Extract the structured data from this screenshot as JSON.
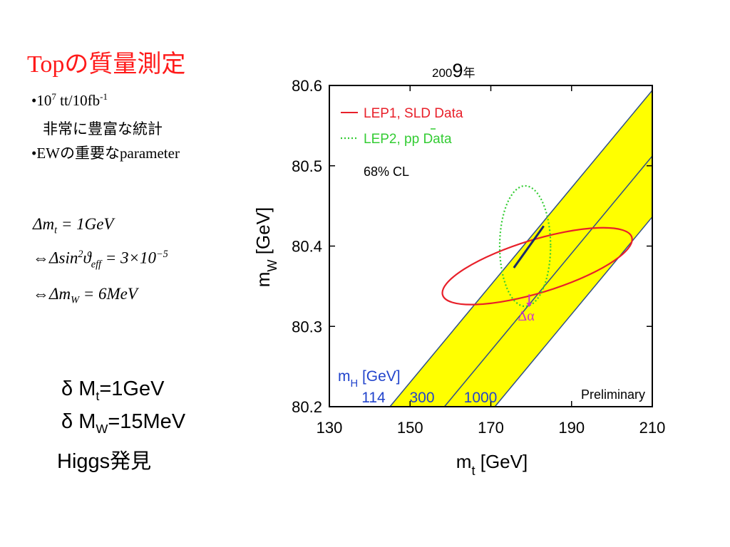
{
  "slide": {
    "title": "Topの質量測定",
    "bullets": [
      {
        "text": "•10",
        "sup": "7",
        "rest": " tt/10fb",
        "sup2": "-1"
      },
      {
        "text": "非常に豊富な統計"
      },
      {
        "text": "•EWの重要なparameter"
      }
    ],
    "equations": [
      {
        "lhs": "Δm",
        "sub": "t",
        "rhs": " = 1GeV"
      },
      {
        "prefix": "⇔Δsin",
        "sup": "2",
        "mid": "ϑ",
        "sub": "eff",
        "rhs": " = 3×10",
        "sup2": "−5"
      },
      {
        "prefix": "⇔Δm",
        "sub": "W",
        "rhs": " = 6MeV"
      }
    ],
    "summary": [
      {
        "pre": "δ M",
        "sub": "t",
        "post": "=1GeV"
      },
      {
        "pre": "δ M",
        "sub": "W",
        "post": "=15MeV"
      },
      {
        "pre": "Higgs発見",
        "sub": "",
        "post": ""
      }
    ]
  },
  "chart_data": {
    "type": "scatter",
    "year_label": {
      "prefix": "200",
      "digit": "9",
      "suffix": "年"
    },
    "xlabel": "m",
    "xlabel_sub": "t",
    "xlabel_unit": "[GeV]",
    "ylabel": "m",
    "ylabel_sub": "W",
    "ylabel_unit": "[GeV]",
    "xlim": [
      130,
      210
    ],
    "ylim": [
      80.2,
      80.6
    ],
    "xticks": [
      130,
      150,
      170,
      190,
      210
    ],
    "yticks": [
      80.2,
      80.3,
      80.4,
      80.5,
      80.6
    ],
    "ytick_labels": [
      "80.2",
      "80.3",
      "80.4",
      "80.5",
      "80.6"
    ],
    "legend": [
      {
        "label": "LEP1, SLD Data",
        "color": "#e8202a",
        "style": "solid"
      },
      {
        "label": "LEP2, pp Data",
        "color": "#33cc33",
        "style": "dotted"
      }
    ],
    "cl_label": "68% CL",
    "higgs_label": "m",
    "higgs_label_sub": "H",
    "higgs_label_unit": "[GeV]",
    "higgs_masses": [
      "114",
      "300",
      "1000"
    ],
    "band_color": "#ffff00",
    "annotation_alpha": "Δα",
    "annotation_color": "#cc33cc",
    "preliminary": "Preliminary",
    "band_lines": [
      {
        "mh": "114",
        "x_at_ymin": 145,
        "x_at_ymax": 211
      },
      {
        "mh": "300",
        "x_at_ymin": 158.5,
        "x_at_ymax": 224.5
      },
      {
        "mh": "1000",
        "x_at_ymin": 171,
        "x_at_ymax": 237
      }
    ],
    "lep1_ellipse": {
      "center": [
        181.5,
        80.375
      ],
      "semi_x": 24.5,
      "semi_y": 0.033,
      "angle_deg": -17
    },
    "lep2_ellipse": {
      "center": [
        178.5,
        80.4
      ],
      "semi_x": 6.3,
      "semi_y": 0.075,
      "angle_deg": 0
    },
    "sm_segment": {
      "from": [
        175.7,
        80.373
      ],
      "to": [
        183.1,
        80.425
      ]
    },
    "alpha_arrow": {
      "from": [
        179.5,
        80.34
      ],
      "to": [
        179.5,
        80.325
      ]
    }
  }
}
